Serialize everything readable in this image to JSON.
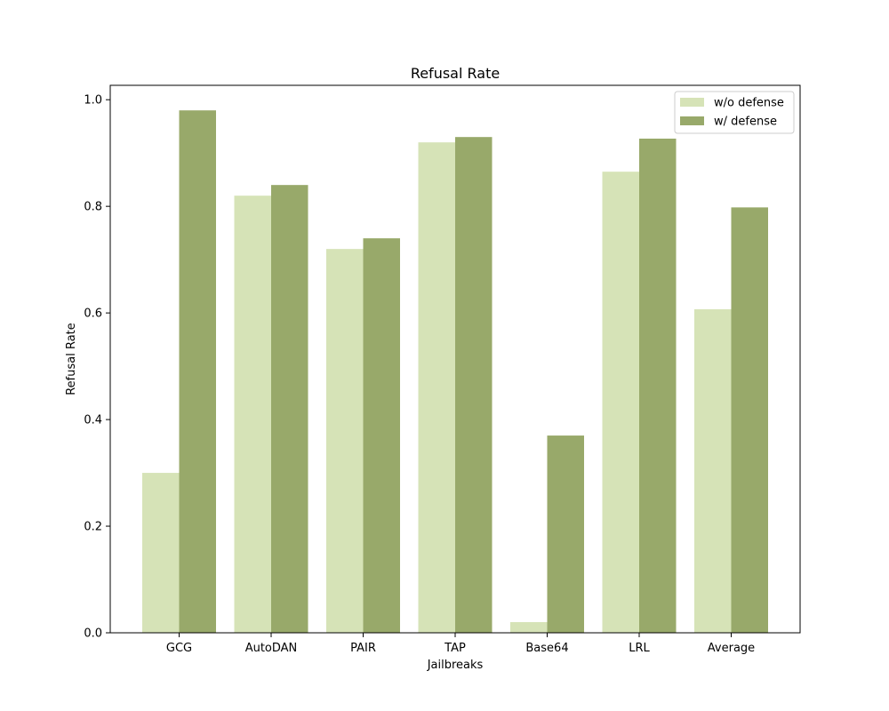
{
  "chart_data": {
    "type": "bar",
    "title": "Refusal Rate",
    "xlabel": "Jailbreaks",
    "ylabel": "Refusal Rate",
    "ylim": [
      0,
      1.027
    ],
    "yticks": [
      "0.0",
      "0.2",
      "0.4",
      "0.6",
      "0.8",
      "1.0"
    ],
    "categories": [
      "GCG",
      "AutoDAN",
      "PAIR",
      "TAP",
      "Base64",
      "LRL",
      "Average"
    ],
    "series": [
      {
        "name": "w/o defense",
        "color": "#d6e3b7",
        "values": [
          0.3,
          0.82,
          0.72,
          0.92,
          0.02,
          0.865,
          0.607
        ]
      },
      {
        "name": "w/ defense",
        "color": "#98a96a",
        "values": [
          0.98,
          0.84,
          0.74,
          0.93,
          0.37,
          0.927,
          0.798
        ]
      }
    ],
    "legend_position": "top-right",
    "grid": false
  }
}
